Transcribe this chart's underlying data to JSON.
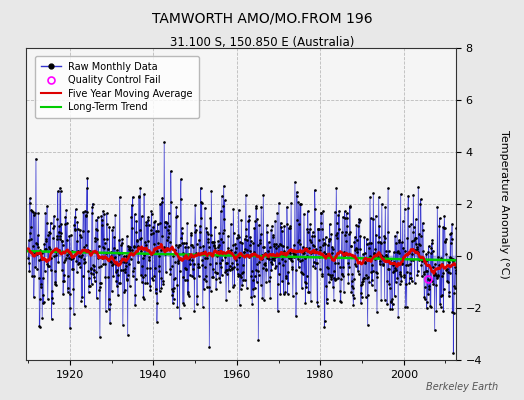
{
  "title": "TAMWORTH AMO/MO.FROM 196",
  "subtitle": "31.100 S, 150.850 E (Australia)",
  "ylabel": "Temperature Anomaly (°C)",
  "attribution": "Berkeley Earth",
  "year_start": 1910,
  "year_end": 2013,
  "ylim": [
    -4,
    8
  ],
  "yticks": [
    -4,
    -2,
    0,
    2,
    4,
    6,
    8
  ],
  "xticks": [
    1920,
    1940,
    1960,
    1980,
    2000
  ],
  "background_color": "#e8e8e8",
  "plot_bg_color": "#f5f5f5",
  "stem_color_pos": "#7777ee",
  "stem_color_neg": "#9999ee",
  "line_color": "#3333cc",
  "ma_color": "#dd0000",
  "trend_color": "#00cc00",
  "dot_color": "#000000",
  "seed": 12345
}
